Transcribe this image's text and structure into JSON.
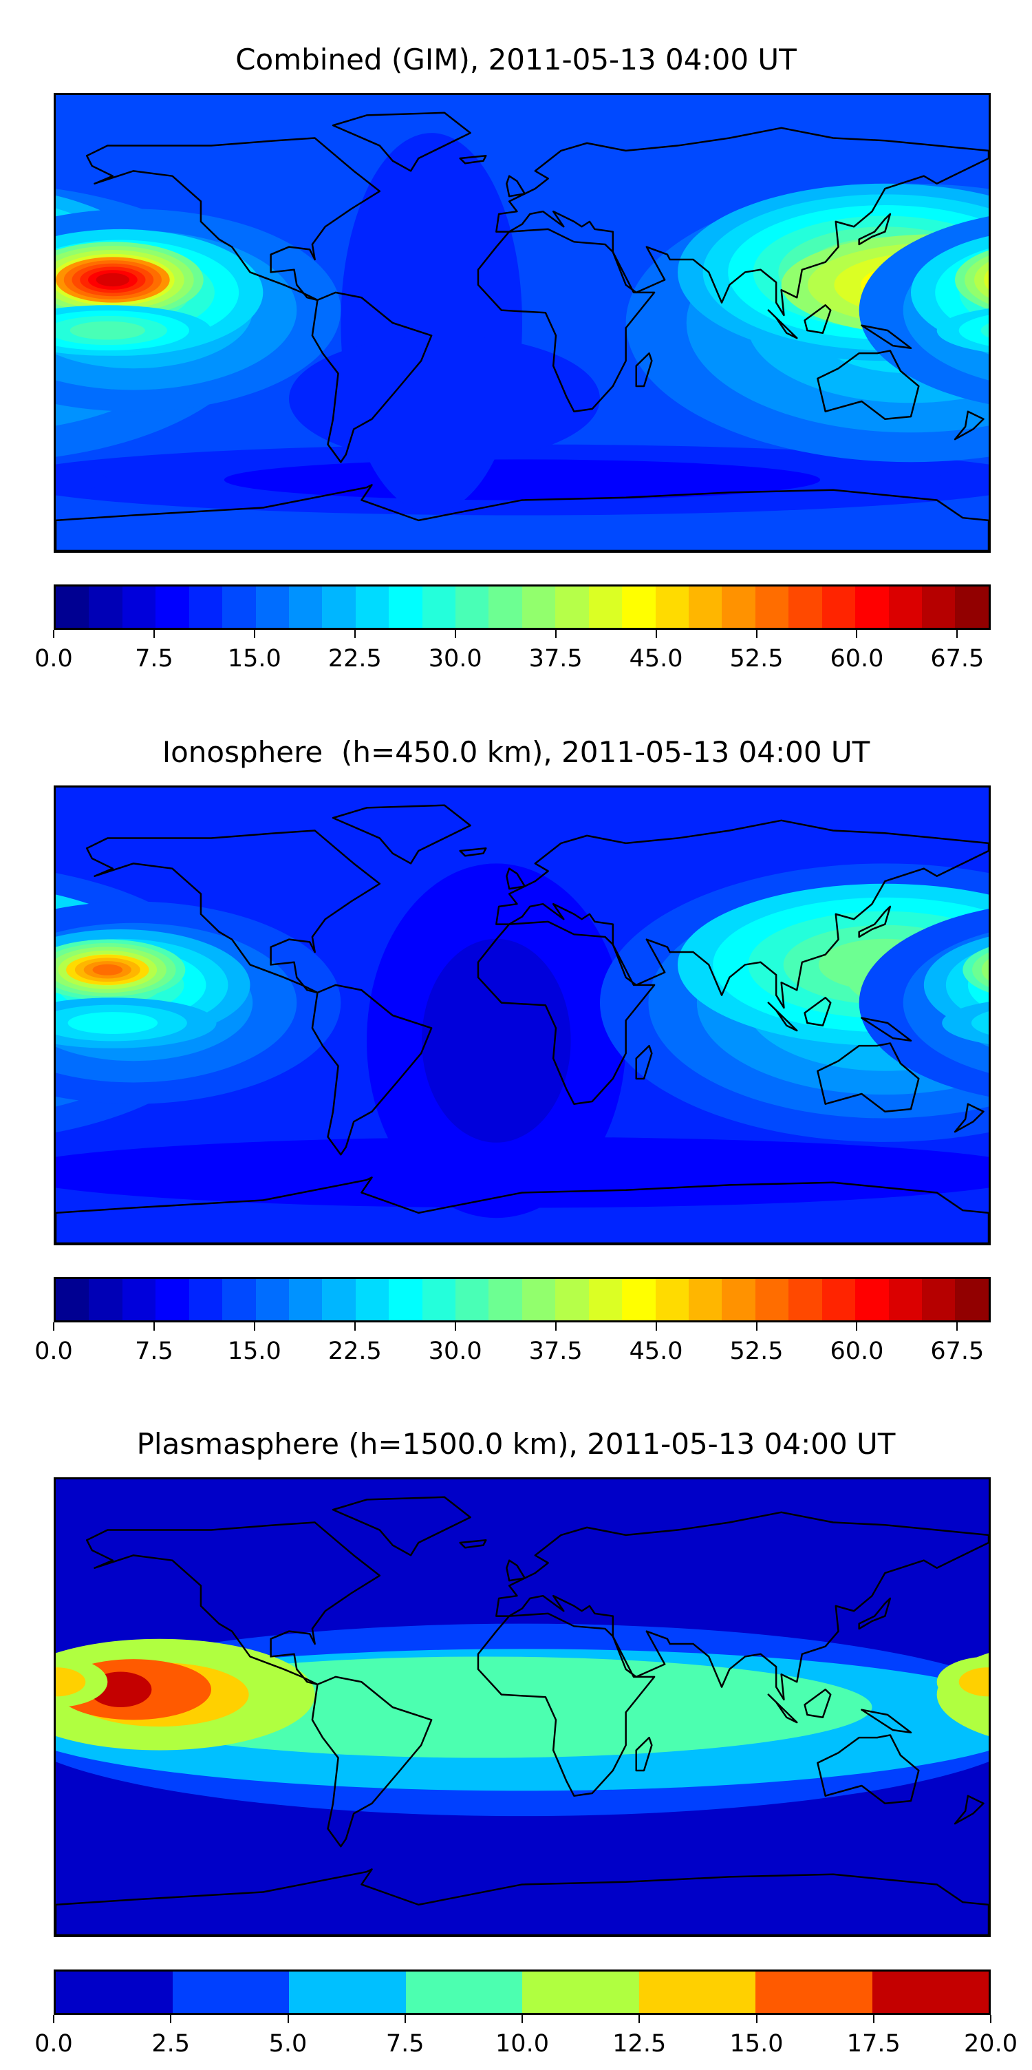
{
  "panels": [
    {
      "title": "Combined (GIM), 2011-05-13 04:00 UT",
      "colorbar": {
        "min": 0,
        "max": 70,
        "step": 2.5,
        "ticks": [
          "0.0",
          "7.5",
          "15.0",
          "22.5",
          "30.0",
          "37.5",
          "45.0",
          "52.5",
          "60.0",
          "67.5"
        ]
      }
    },
    {
      "title": "Ionosphere  (h=450.0 km), 2011-05-13 04:00 UT",
      "colorbar": {
        "min": 0,
        "max": 70,
        "step": 2.5,
        "ticks": [
          "0.0",
          "7.5",
          "15.0",
          "22.5",
          "30.0",
          "37.5",
          "45.0",
          "52.5",
          "60.0",
          "67.5"
        ]
      }
    },
    {
      "title": "Plasmasphere (h=1500.0 km), 2011-05-13 04:00 UT",
      "colorbar": {
        "min": 0,
        "max": 20,
        "step": 2.5,
        "ticks": [
          "0.0",
          "2.5",
          "5.0",
          "7.5",
          "10.0",
          "12.5",
          "15.0",
          "17.5",
          "20.0"
        ],
        "colors": [
          "#0000c8",
          "#0040ff",
          "#00c0ff",
          "#4cffb0",
          "#b0ff40",
          "#ffd000",
          "#ff5a00",
          "#c40000"
        ]
      }
    }
  ],
  "chart_data": [
    {
      "type": "heatmap",
      "title": "Combined (GIM), 2011-05-13 04:00 UT",
      "colorbar_range": [
        0,
        70
      ],
      "levels_step": 2.5,
      "features": [
        {
          "region": "central Pacific, lon -155 lat 15",
          "value": 65
        },
        {
          "region": "East Asia / W Pacific, lon 120-180 lat 10-20",
          "value": 47
        },
        {
          "region": "southern ocean band lat -60",
          "value": 7
        },
        {
          "region": "background",
          "value": 14
        }
      ]
    },
    {
      "type": "heatmap",
      "title": "Ionosphere  (h=450.0 km), 2011-05-13 04:00 UT",
      "colorbar_range": [
        0,
        70
      ],
      "levels_step": 2.5,
      "features": [
        {
          "region": "central Pacific, lon -155 lat 15",
          "value": 55
        },
        {
          "region": "East Asia / W Pacific, lon 120-180 lat 10-20",
          "value": 42
        },
        {
          "region": "Atlantic/Africa",
          "value": 6
        },
        {
          "region": "background",
          "value": 12
        }
      ]
    },
    {
      "type": "heatmap",
      "title": "Plasmasphere (h=1500.0 km), 2011-05-13 04:00 UT",
      "colorbar_range": [
        0,
        20
      ],
      "levels_step": 2.5,
      "features": [
        {
          "region": "central Pacific, lon -150 lat 10",
          "value": 18
        },
        {
          "region": "low-latitude band",
          "value": 8
        },
        {
          "region": "high latitudes",
          "value": 1
        }
      ]
    }
  ]
}
